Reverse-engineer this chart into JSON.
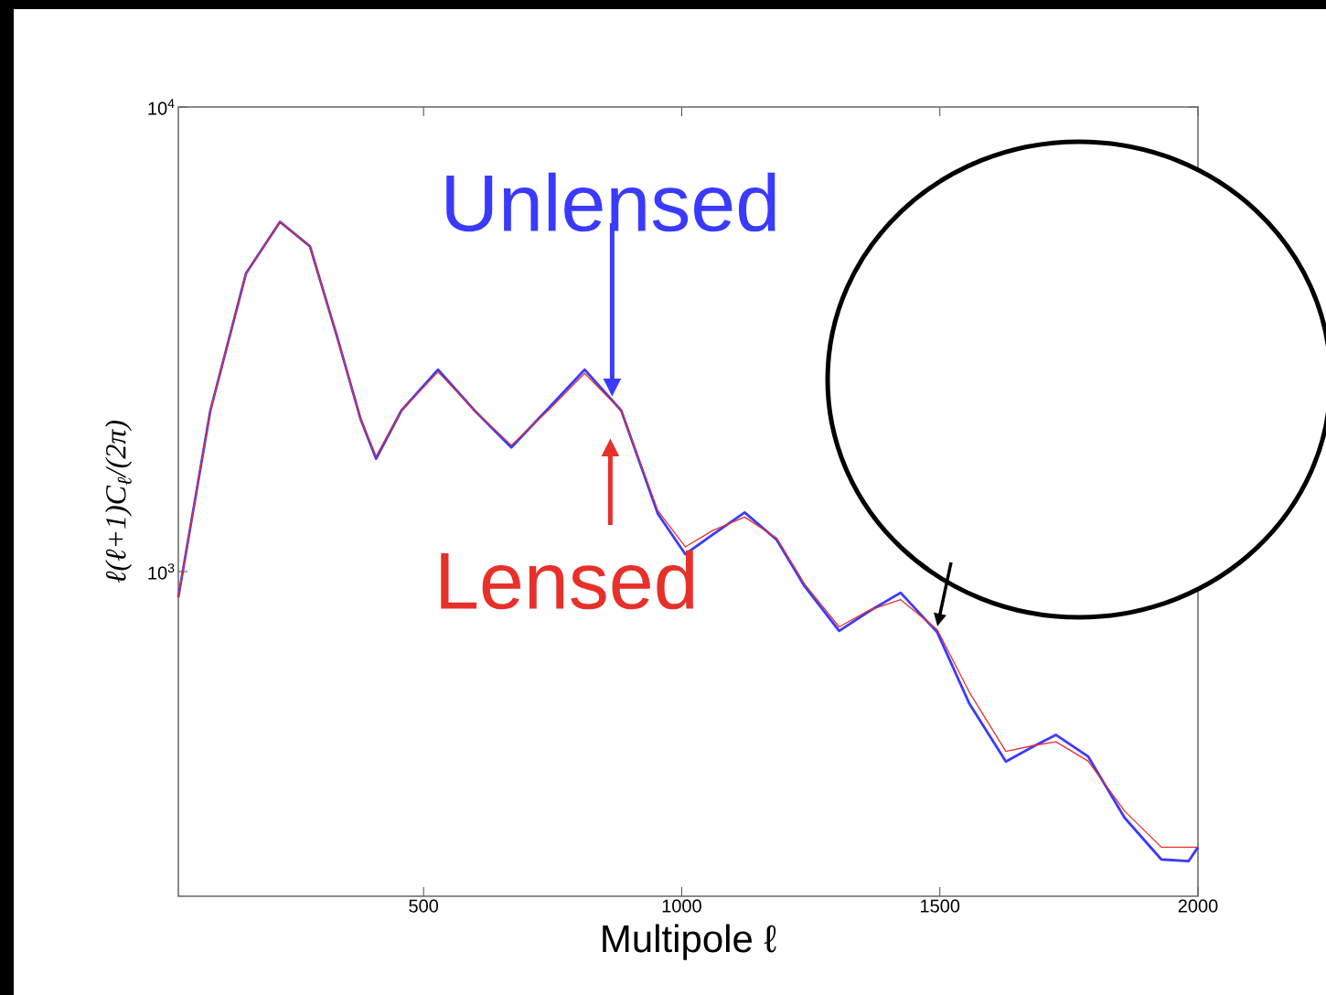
{
  "chart_data": {
    "type": "line",
    "xlabel": "Multipole ℓ",
    "ylabel": "ℓ(ℓ+1)C$_{ℓ}$/(2π)",
    "x": [
      25,
      87,
      156,
      222,
      280,
      333,
      378,
      408,
      457,
      528,
      599,
      670,
      741,
      812,
      883,
      954,
      1007,
      1060,
      1122,
      1184,
      1238,
      1305,
      1362,
      1424,
      1495,
      1557,
      1628,
      1681,
      1725,
      1787,
      1858,
      1929,
      1982,
      2000
    ],
    "series": [
      {
        "name": "Unlensed",
        "color": "#3a3aff",
        "values": [
          880,
          2220,
          4380,
          5660,
          5010,
          3190,
          2130,
          1750,
          2220,
          2720,
          2220,
          1850,
          2240,
          2720,
          2220,
          1330,
          1090,
          1200,
          1340,
          1170,
          930,
          745,
          820,
          900,
          740,
          520,
          390,
          420,
          445,
          400,
          295,
          240,
          238,
          255
        ]
      },
      {
        "name": "Lensed",
        "color": "#e8302a",
        "values": [
          880,
          2220,
          4380,
          5660,
          5010,
          3190,
          2130,
          1770,
          2220,
          2690,
          2220,
          1870,
          2220,
          2670,
          2220,
          1350,
          1130,
          1225,
          1310,
          1180,
          940,
          760,
          824,
          870,
          750,
          550,
          410,
          422,
          430,
          391,
          305,
          255,
          255,
          255
        ]
      }
    ],
    "log": "y",
    "xlim": [
      25,
      2000
    ],
    "ylim": [
      200,
      10000
    ],
    "xticks": [
      500,
      1000,
      1500,
      2000
    ],
    "yticks": [
      {
        "value": 1000,
        "label": "10$^{3}$"
      },
      {
        "value": 10000,
        "label": "10$^{4}$"
      }
    ]
  }
}
